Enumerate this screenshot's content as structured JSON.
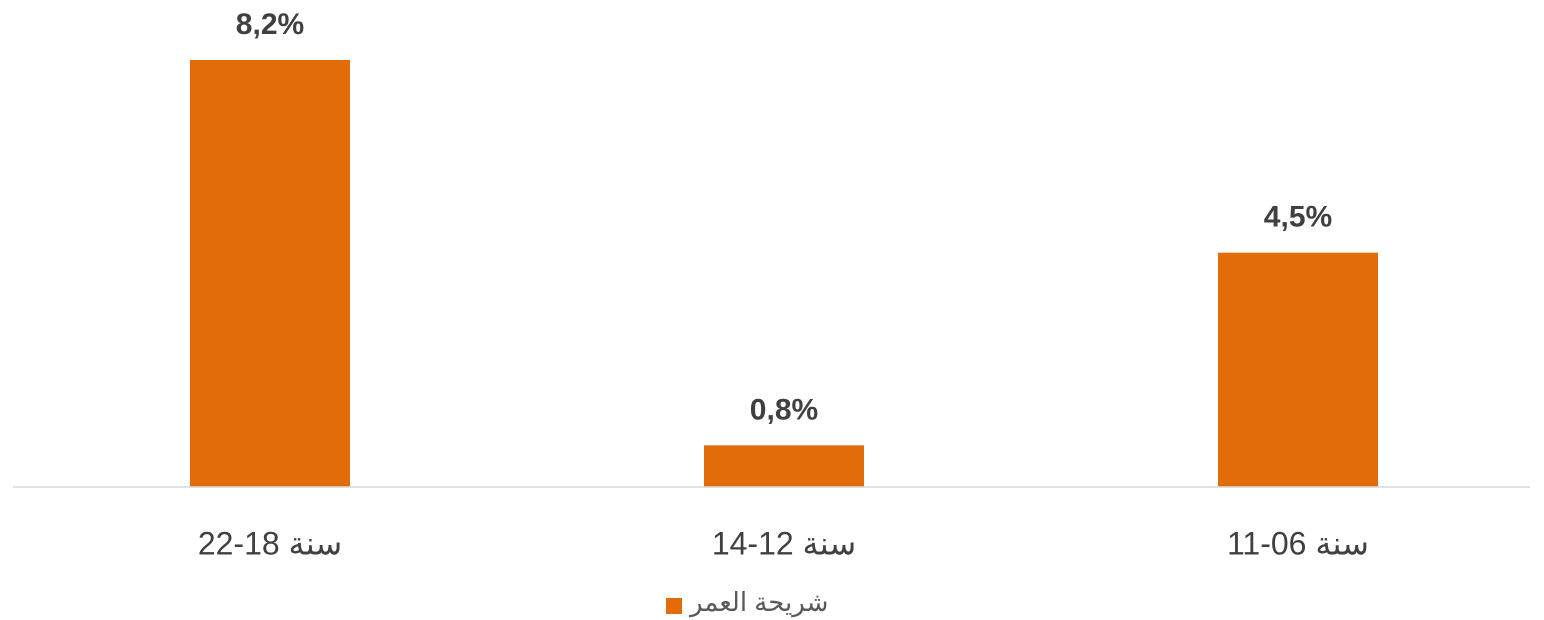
{
  "chart_data": {
    "type": "bar",
    "categories": [
      "22-18 سنة",
      "14-12 سنة",
      "11-06 سنة"
    ],
    "series": [
      {
        "name": "شريحة العمر",
        "color": "#e36c0a",
        "values": [
          8.2,
          0.8,
          4.5
        ],
        "value_labels": [
          "8,2%",
          "0,8%",
          "4,5%"
        ]
      }
    ]
  }
}
